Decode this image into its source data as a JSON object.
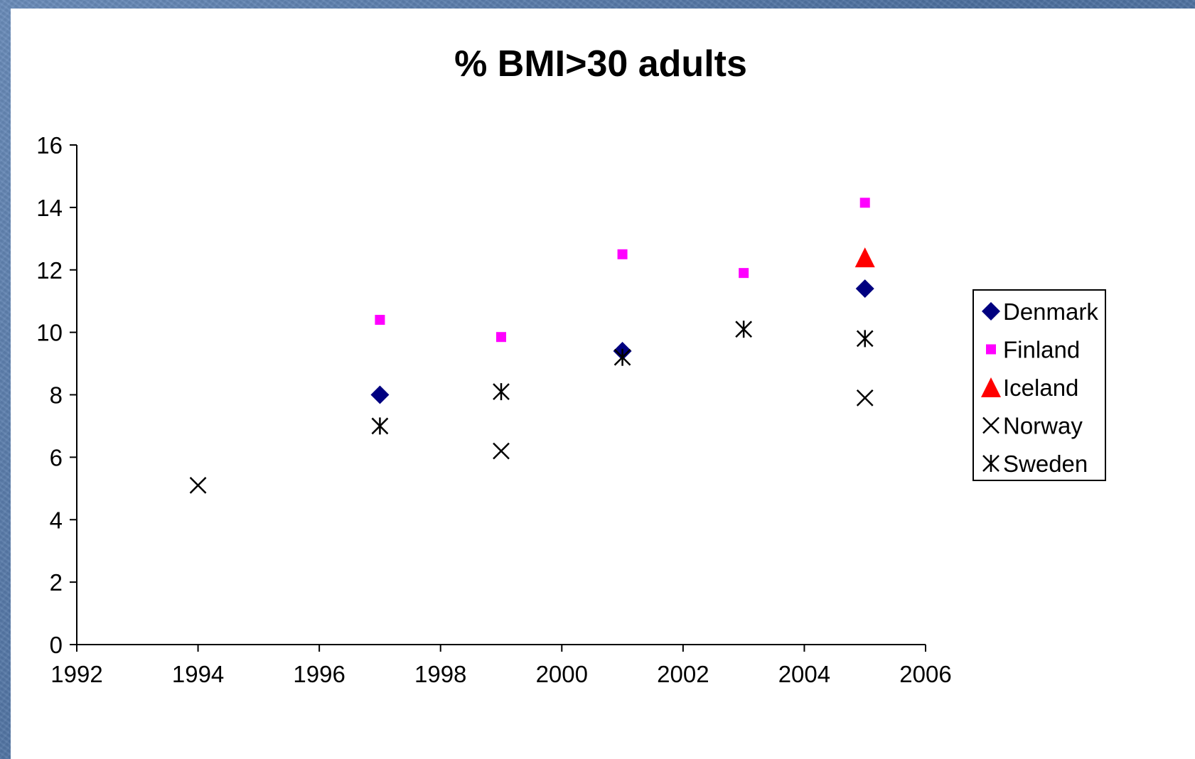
{
  "chart_data": {
    "type": "scatter",
    "title": "% BMI>30 adults",
    "xlabel": "",
    "ylabel": "",
    "xlim": [
      1992,
      2006
    ],
    "ylim": [
      0,
      16
    ],
    "x_ticks": [
      "1992",
      "1994",
      "1996",
      "1998",
      "2000",
      "2002",
      "2004",
      "2006"
    ],
    "y_ticks": [
      "0",
      "2",
      "4",
      "6",
      "8",
      "10",
      "12",
      "14",
      "16"
    ],
    "grid": false,
    "legend_position": "right",
    "series": [
      {
        "name": "Denmark",
        "marker": "diamond",
        "color": "#000080",
        "points": [
          {
            "x": 1997,
            "y": 8.0
          },
          {
            "x": 2001,
            "y": 9.4
          },
          {
            "x": 2005,
            "y": 11.4
          }
        ]
      },
      {
        "name": "Finland",
        "marker": "square",
        "color": "#ff00ff",
        "points": [
          {
            "x": 1997,
            "y": 10.4
          },
          {
            "x": 1999,
            "y": 9.85
          },
          {
            "x": 2001,
            "y": 12.5
          },
          {
            "x": 2003,
            "y": 11.9
          },
          {
            "x": 2005,
            "y": 14.15
          }
        ]
      },
      {
        "name": "Iceland",
        "marker": "triangle",
        "color": "#ff0000",
        "points": [
          {
            "x": 2005,
            "y": 12.4
          }
        ]
      },
      {
        "name": "Norway",
        "marker": "x",
        "color": "#000000",
        "points": [
          {
            "x": 1994,
            "y": 5.1
          },
          {
            "x": 1999,
            "y": 6.2
          },
          {
            "x": 2005,
            "y": 7.9
          }
        ]
      },
      {
        "name": "Sweden",
        "marker": "star",
        "color": "#000000",
        "points": [
          {
            "x": 1997,
            "y": 7.0
          },
          {
            "x": 1999,
            "y": 8.1
          },
          {
            "x": 2001,
            "y": 9.2
          },
          {
            "x": 2003,
            "y": 10.1
          },
          {
            "x": 2005,
            "y": 9.8
          }
        ]
      }
    ]
  }
}
